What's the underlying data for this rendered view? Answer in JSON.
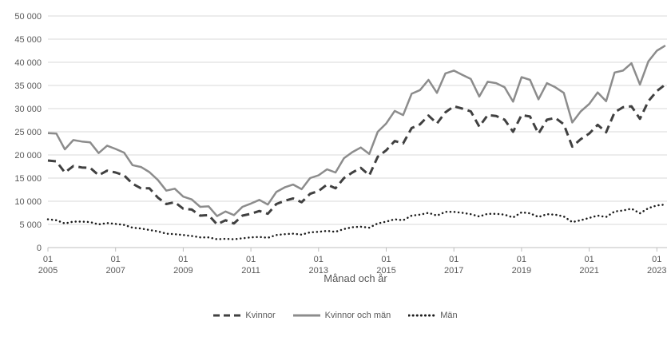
{
  "chart_data": {
    "type": "line",
    "xlabel": "Månad och år",
    "ylabel": "",
    "ylim": [
      0,
      50000
    ],
    "y_ticks": [
      0,
      5000,
      10000,
      15000,
      20000,
      25000,
      30000,
      35000,
      40000,
      45000,
      50000
    ],
    "y_tick_labels": [
      "0",
      "5 000",
      "10 000",
      "15 000",
      "20 000",
      "25 000",
      "30 000",
      "35 000",
      "40 000",
      "45 000",
      "50 000"
    ],
    "x_tick_labels": [
      {
        "month": "01",
        "year": "2005",
        "x": 2005.0
      },
      {
        "month": "01",
        "year": "2007",
        "x": 2007.0
      },
      {
        "month": "01",
        "year": "2009",
        "x": 2009.0
      },
      {
        "month": "01",
        "year": "2011",
        "x": 2011.0
      },
      {
        "month": "01",
        "year": "2013",
        "x": 2013.0
      },
      {
        "month": "01",
        "year": "2015",
        "x": 2015.0
      },
      {
        "month": "01",
        "year": "2017",
        "x": 2017.0
      },
      {
        "month": "01",
        "year": "2019",
        "x": 2019.0
      },
      {
        "month": "01",
        "year": "2021",
        "x": 2021.0
      },
      {
        "month": "01",
        "year": "2023",
        "x": 2023.0
      }
    ],
    "xlim": [
      2005.0,
      2023.3
    ],
    "grid": true,
    "legend_position": "bottom",
    "series": [
      {
        "name": "Kvinnor",
        "color": "#404040",
        "style": "dashed",
        "points": [
          [
            2005.0,
            18800
          ],
          [
            2005.25,
            18600
          ],
          [
            2005.5,
            16200
          ],
          [
            2005.75,
            17600
          ],
          [
            2006.0,
            17300
          ],
          [
            2006.25,
            17200
          ],
          [
            2006.5,
            15600
          ],
          [
            2006.75,
            16600
          ],
          [
            2007.0,
            16200
          ],
          [
            2007.25,
            15600
          ],
          [
            2007.5,
            13800
          ],
          [
            2007.75,
            12800
          ],
          [
            2008.0,
            12800
          ],
          [
            2008.25,
            10800
          ],
          [
            2008.5,
            9400
          ],
          [
            2008.75,
            9800
          ],
          [
            2009.0,
            8400
          ],
          [
            2009.25,
            8200
          ],
          [
            2009.5,
            6900
          ],
          [
            2009.75,
            7000
          ],
          [
            2010.0,
            5000
          ],
          [
            2010.25,
            5900
          ],
          [
            2010.5,
            5200
          ],
          [
            2010.75,
            6900
          ],
          [
            2011.0,
            7300
          ],
          [
            2011.25,
            7900
          ],
          [
            2011.5,
            7300
          ],
          [
            2011.75,
            9400
          ],
          [
            2012.0,
            10100
          ],
          [
            2012.25,
            10600
          ],
          [
            2012.5,
            9800
          ],
          [
            2012.75,
            11600
          ],
          [
            2013.0,
            12200
          ],
          [
            2013.25,
            13600
          ],
          [
            2013.5,
            12800
          ],
          [
            2013.75,
            15000
          ],
          [
            2014.0,
            16200
          ],
          [
            2014.25,
            17200
          ],
          [
            2014.5,
            15600
          ],
          [
            2014.75,
            19600
          ],
          [
            2015.0,
            21000
          ],
          [
            2015.25,
            23000
          ],
          [
            2015.5,
            22500
          ],
          [
            2015.75,
            25800
          ],
          [
            2016.0,
            26600
          ],
          [
            2016.25,
            28500
          ],
          [
            2016.5,
            26800
          ],
          [
            2016.75,
            29200
          ],
          [
            2017.0,
            30500
          ],
          [
            2017.25,
            30000
          ],
          [
            2017.5,
            29400
          ],
          [
            2017.75,
            26100
          ],
          [
            2018.0,
            28600
          ],
          [
            2018.25,
            28400
          ],
          [
            2018.5,
            27600
          ],
          [
            2018.75,
            25000
          ],
          [
            2019.0,
            28600
          ],
          [
            2019.25,
            28300
          ],
          [
            2019.5,
            24600
          ],
          [
            2019.75,
            27600
          ],
          [
            2020.0,
            28000
          ],
          [
            2020.25,
            26600
          ],
          [
            2020.5,
            21800
          ],
          [
            2020.75,
            23400
          ],
          [
            2021.0,
            24600
          ],
          [
            2021.25,
            26500
          ],
          [
            2021.5,
            24900
          ],
          [
            2021.75,
            29200
          ],
          [
            2022.0,
            30300
          ],
          [
            2022.25,
            30500
          ],
          [
            2022.5,
            27800
          ],
          [
            2022.75,
            31600
          ],
          [
            2023.0,
            33800
          ],
          [
            2023.25,
            35200
          ]
        ]
      },
      {
        "name": "Kvinnor och män",
        "color": "#8c8c8c",
        "style": "solid",
        "points": [
          [
            2005.0,
            24700
          ],
          [
            2005.25,
            24600
          ],
          [
            2005.5,
            21200
          ],
          [
            2005.75,
            23200
          ],
          [
            2006.0,
            22900
          ],
          [
            2006.25,
            22700
          ],
          [
            2006.5,
            20400
          ],
          [
            2006.75,
            22000
          ],
          [
            2007.0,
            21300
          ],
          [
            2007.25,
            20500
          ],
          [
            2007.5,
            17800
          ],
          [
            2007.75,
            17400
          ],
          [
            2008.0,
            16300
          ],
          [
            2008.25,
            14600
          ],
          [
            2008.5,
            12300
          ],
          [
            2008.75,
            12700
          ],
          [
            2009.0,
            11000
          ],
          [
            2009.25,
            10400
          ],
          [
            2009.5,
            8800
          ],
          [
            2009.75,
            8900
          ],
          [
            2010.0,
            6800
          ],
          [
            2010.25,
            7800
          ],
          [
            2010.5,
            7000
          ],
          [
            2010.75,
            8800
          ],
          [
            2011.0,
            9500
          ],
          [
            2011.25,
            10300
          ],
          [
            2011.5,
            9300
          ],
          [
            2011.75,
            12000
          ],
          [
            2012.0,
            13000
          ],
          [
            2012.25,
            13600
          ],
          [
            2012.5,
            12600
          ],
          [
            2012.75,
            15000
          ],
          [
            2013.0,
            15600
          ],
          [
            2013.25,
            16900
          ],
          [
            2013.5,
            16200
          ],
          [
            2013.75,
            19300
          ],
          [
            2014.0,
            20600
          ],
          [
            2014.25,
            21600
          ],
          [
            2014.5,
            20200
          ],
          [
            2014.75,
            25000
          ],
          [
            2015.0,
            26800
          ],
          [
            2015.25,
            29500
          ],
          [
            2015.5,
            28600
          ],
          [
            2015.75,
            33200
          ],
          [
            2016.0,
            34000
          ],
          [
            2016.25,
            36200
          ],
          [
            2016.5,
            33400
          ],
          [
            2016.75,
            37600
          ],
          [
            2017.0,
            38200
          ],
          [
            2017.25,
            37300
          ],
          [
            2017.5,
            36400
          ],
          [
            2017.75,
            32600
          ],
          [
            2018.0,
            35800
          ],
          [
            2018.25,
            35500
          ],
          [
            2018.5,
            34600
          ],
          [
            2018.75,
            31500
          ],
          [
            2019.0,
            36800
          ],
          [
            2019.25,
            36200
          ],
          [
            2019.5,
            32000
          ],
          [
            2019.75,
            35500
          ],
          [
            2020.0,
            34600
          ],
          [
            2020.25,
            33400
          ],
          [
            2020.5,
            27000
          ],
          [
            2020.75,
            29400
          ],
          [
            2021.0,
            31000
          ],
          [
            2021.25,
            33500
          ],
          [
            2021.5,
            31600
          ],
          [
            2021.75,
            37800
          ],
          [
            2022.0,
            38200
          ],
          [
            2022.25,
            39800
          ],
          [
            2022.5,
            35200
          ],
          [
            2022.75,
            40200
          ],
          [
            2023.0,
            42500
          ],
          [
            2023.25,
            43600
          ]
        ]
      },
      {
        "name": "Män",
        "color": "#1a1a1a",
        "style": "dotted",
        "points": [
          [
            2005.0,
            6100
          ],
          [
            2005.25,
            5900
          ],
          [
            2005.5,
            5200
          ],
          [
            2005.75,
            5600
          ],
          [
            2006.0,
            5600
          ],
          [
            2006.25,
            5500
          ],
          [
            2006.5,
            5000
          ],
          [
            2006.75,
            5300
          ],
          [
            2007.0,
            5100
          ],
          [
            2007.25,
            4900
          ],
          [
            2007.5,
            4300
          ],
          [
            2007.75,
            4100
          ],
          [
            2008.0,
            3800
          ],
          [
            2008.25,
            3500
          ],
          [
            2008.5,
            3000
          ],
          [
            2008.75,
            2900
          ],
          [
            2009.0,
            2700
          ],
          [
            2009.25,
            2500
          ],
          [
            2009.5,
            2200
          ],
          [
            2009.75,
            2200
          ],
          [
            2010.0,
            1800
          ],
          [
            2010.25,
            1900
          ],
          [
            2010.5,
            1800
          ],
          [
            2010.75,
            2000
          ],
          [
            2011.0,
            2200
          ],
          [
            2011.25,
            2300
          ],
          [
            2011.5,
            2100
          ],
          [
            2011.75,
            2700
          ],
          [
            2012.0,
            2900
          ],
          [
            2012.25,
            3000
          ],
          [
            2012.5,
            2800
          ],
          [
            2012.75,
            3300
          ],
          [
            2013.0,
            3400
          ],
          [
            2013.25,
            3600
          ],
          [
            2013.5,
            3400
          ],
          [
            2013.75,
            4000
          ],
          [
            2014.0,
            4400
          ],
          [
            2014.25,
            4500
          ],
          [
            2014.5,
            4300
          ],
          [
            2014.75,
            5200
          ],
          [
            2015.0,
            5600
          ],
          [
            2015.25,
            6100
          ],
          [
            2015.5,
            5900
          ],
          [
            2015.75,
            6900
          ],
          [
            2016.0,
            7100
          ],
          [
            2016.25,
            7500
          ],
          [
            2016.5,
            6900
          ],
          [
            2016.75,
            7700
          ],
          [
            2017.0,
            7700
          ],
          [
            2017.25,
            7500
          ],
          [
            2017.5,
            7200
          ],
          [
            2017.75,
            6700
          ],
          [
            2018.0,
            7300
          ],
          [
            2018.25,
            7300
          ],
          [
            2018.5,
            7100
          ],
          [
            2018.75,
            6500
          ],
          [
            2019.0,
            7600
          ],
          [
            2019.25,
            7400
          ],
          [
            2019.5,
            6600
          ],
          [
            2019.75,
            7200
          ],
          [
            2020.0,
            7100
          ],
          [
            2020.25,
            6700
          ],
          [
            2020.5,
            5500
          ],
          [
            2020.75,
            5900
          ],
          [
            2021.0,
            6400
          ],
          [
            2021.25,
            6900
          ],
          [
            2021.5,
            6600
          ],
          [
            2021.75,
            7800
          ],
          [
            2022.0,
            8000
          ],
          [
            2022.25,
            8400
          ],
          [
            2022.5,
            7400
          ],
          [
            2022.75,
            8500
          ],
          [
            2023.0,
            9100
          ],
          [
            2023.25,
            9300
          ]
        ]
      }
    ]
  }
}
